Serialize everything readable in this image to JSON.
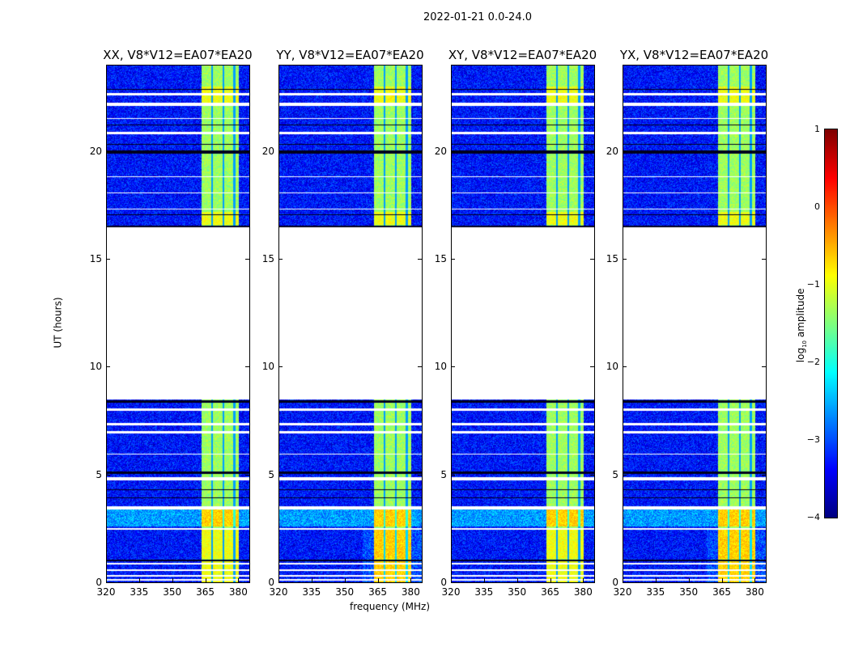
{
  "suptitle": "2022-01-21 0.0-24.0",
  "chart_data": {
    "type": "heatmap",
    "panels": [
      {
        "title": "XX, V8*V12=EA07*EA20"
      },
      {
        "title": "YY, V8*V12=EA07*EA20"
      },
      {
        "title": "XY, V8*V12=EA07*EA20"
      },
      {
        "title": "YX, V8*V12=EA07*EA20"
      }
    ],
    "xlabel": "frequency (MHz)",
    "ylabel": "UT (hours)",
    "xlim": [
      320,
      385
    ],
    "ylim": [
      0,
      24
    ],
    "xticks": [
      "320",
      "335",
      "350",
      "365",
      "380"
    ],
    "xtick_values": [
      320,
      335,
      350,
      365,
      380
    ],
    "yticks": [
      "0",
      "5",
      "10",
      "15",
      "20"
    ],
    "ytick_values": [
      0,
      5,
      10,
      15,
      20
    ],
    "colorbar": {
      "label": "log10 amplitude",
      "label_main": "log",
      "label_sub": "10",
      "label_rest": " amplitude",
      "range": [
        -4,
        1
      ],
      "ticks": [
        "1",
        "0",
        "−1",
        "−2",
        "−3",
        "−4"
      ],
      "tick_values": [
        1,
        0,
        -1,
        -2,
        -3,
        -4
      ],
      "colormap": "jet"
    },
    "data_gap_hours": [
      8.5,
      16.5
    ],
    "background_level": -3.3,
    "bright_band_mhz": [
      363,
      380
    ],
    "bright_band_level": -1.2
  }
}
